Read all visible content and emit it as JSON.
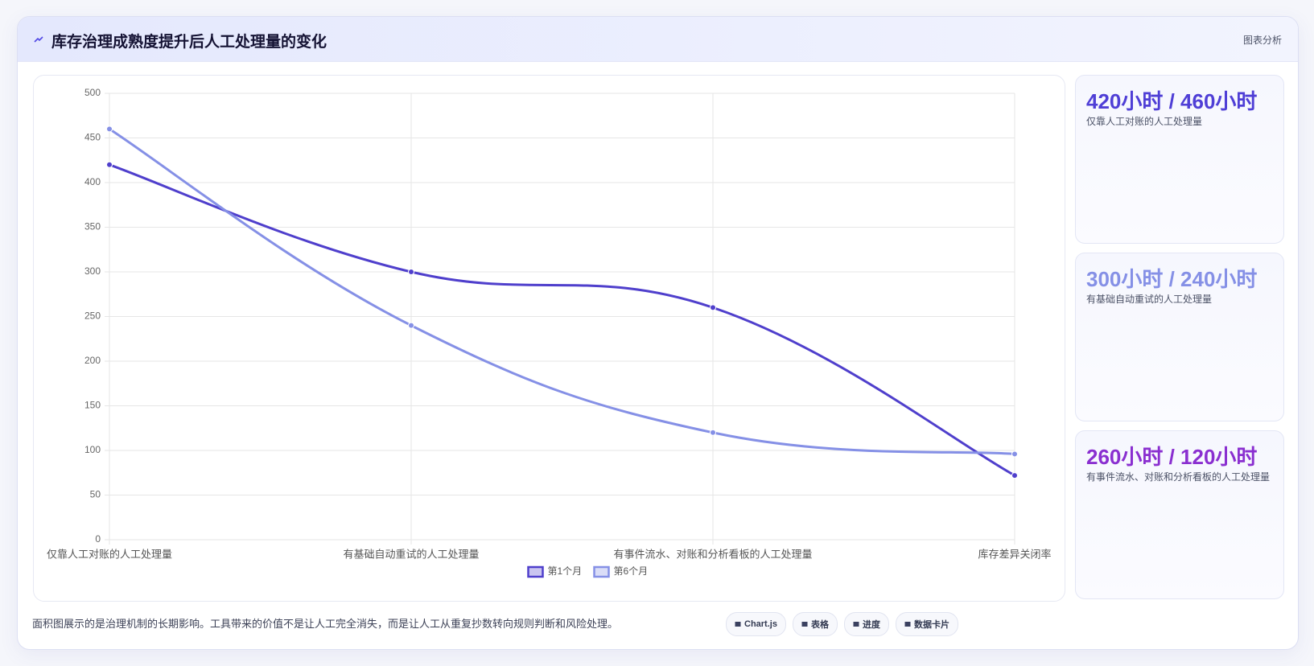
{
  "header": {
    "title": "库存治理成熟度提升后人工处理量的变化",
    "tag": "图表分析"
  },
  "chart_data": {
    "type": "line",
    "categories": [
      "仅靠人工对账的人工处理量",
      "有基础自动重试的人工处理量",
      "有事件流水、对账和分析看板的人工处理量",
      "库存差异关闭率"
    ],
    "series": [
      {
        "name": "第1个月",
        "color": "#4f3fcc",
        "values": [
          420,
          300,
          260,
          72
        ]
      },
      {
        "name": "第6个月",
        "color": "#8590e6",
        "values": [
          460,
          240,
          120,
          96
        ]
      }
    ],
    "ylim": [
      0,
      500
    ],
    "yticks": [
      0,
      50,
      100,
      150,
      200,
      250,
      300,
      350,
      400,
      450,
      500
    ],
    "grid": true,
    "legend": "bottom"
  },
  "cards": [
    {
      "value": "420小时 / 460小时",
      "caption": "仅靠人工对账的人工处理量",
      "color": "#4f3fd6"
    },
    {
      "value": "300小时 / 240小时",
      "caption": "有基础自动重试的人工处理量",
      "color": "#8590e6"
    },
    {
      "value": "260小时 / 120小时",
      "caption": "有事件流水、对账和分析看板的人工处理量",
      "color": "#8a2fd0"
    }
  ],
  "footer": {
    "note": "面积图展示的是治理机制的长期影响。工具带来的价值不是让人工完全消失，而是让人工从重复抄数转向规则判断和风险处理。",
    "buttons": [
      "Chart.js",
      "表格",
      "进度",
      "数据卡片"
    ]
  }
}
